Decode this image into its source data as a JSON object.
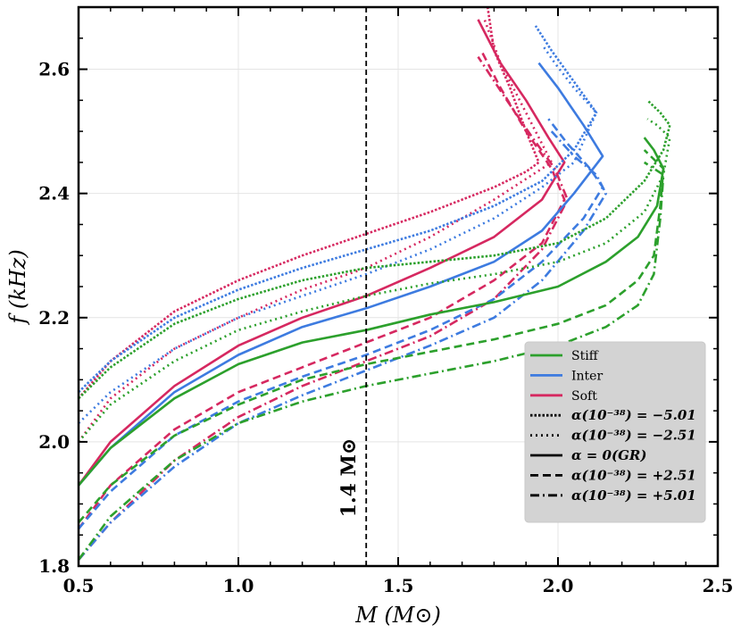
{
  "chart_data": {
    "type": "line",
    "xlabel": "M (M⊙)",
    "ylabel": "f (kHz)",
    "xlim": [
      0.5,
      2.5
    ],
    "ylim": [
      1.8,
      2.7
    ],
    "xticks": [
      0.5,
      1.0,
      1.5,
      2.0,
      2.5
    ],
    "xtick_labels": [
      "0.5",
      "1.0",
      "1.5",
      "2.0",
      "2.5"
    ],
    "yticks": [
      1.8,
      2.0,
      2.2,
      2.4,
      2.6
    ],
    "ytick_labels": [
      "1.8",
      "2.0",
      "2.2",
      "2.4",
      "2.6"
    ],
    "grid": true,
    "legend_position": "lower-right",
    "annotation": {
      "text": "1.4 M⊙",
      "x": 1.4,
      "style": "dashed-vertical-line"
    },
    "eos_legend": [
      {
        "name": "Stiff",
        "color": "#2ca02c"
      },
      {
        "name": "Inter",
        "color": "#3d7be0"
      },
      {
        "name": "Soft",
        "color": "#d62860"
      }
    ],
    "alpha_legend": [
      {
        "label": "α(10⁻³⁸) = −5.01",
        "dash": "densely-dotted"
      },
      {
        "label": "α(10⁻³⁸) = −2.51",
        "dash": "dotted"
      },
      {
        "label": "α = 0(GR)",
        "dash": "solid"
      },
      {
        "label": "α(10⁻³⁸) = +2.51",
        "dash": "dashed"
      },
      {
        "label": "α(10⁻³⁸) = +5.01",
        "dash": "dashdot"
      }
    ],
    "series": [
      {
        "eos": "Soft",
        "alpha": -5.01,
        "color": "#d62860",
        "dash": "densely-dotted",
        "points": [
          [
            0.5,
            2.07
          ],
          [
            0.6,
            2.13
          ],
          [
            0.8,
            2.21
          ],
          [
            1.0,
            2.26
          ],
          [
            1.2,
            2.3
          ],
          [
            1.4,
            2.335
          ],
          [
            1.6,
            2.37
          ],
          [
            1.8,
            2.41
          ],
          [
            1.9,
            2.435
          ],
          [
            1.94,
            2.45
          ],
          [
            1.9,
            2.5
          ],
          [
            1.85,
            2.57
          ],
          [
            1.8,
            2.63
          ],
          [
            1.78,
            2.7
          ]
        ]
      },
      {
        "eos": "Soft",
        "alpha": -2.51,
        "color": "#d62860",
        "dash": "dotted",
        "points": [
          [
            0.5,
            2.0
          ],
          [
            0.6,
            2.07
          ],
          [
            0.8,
            2.15
          ],
          [
            1.0,
            2.2
          ],
          [
            1.2,
            2.245
          ],
          [
            1.4,
            2.28
          ],
          [
            1.6,
            2.33
          ],
          [
            1.8,
            2.39
          ],
          [
            1.95,
            2.44
          ],
          [
            1.98,
            2.45
          ],
          [
            1.93,
            2.5
          ],
          [
            1.87,
            2.56
          ],
          [
            1.82,
            2.61
          ],
          [
            1.77,
            2.68
          ]
        ]
      },
      {
        "eos": "Soft",
        "alpha": 0,
        "color": "#d62860",
        "dash": "solid",
        "points": [
          [
            0.5,
            1.93
          ],
          [
            0.6,
            2.0
          ],
          [
            0.8,
            2.09
          ],
          [
            1.0,
            2.155
          ],
          [
            1.2,
            2.2
          ],
          [
            1.4,
            2.235
          ],
          [
            1.6,
            2.28
          ],
          [
            1.8,
            2.33
          ],
          [
            1.95,
            2.39
          ],
          [
            2.02,
            2.45
          ],
          [
            1.97,
            2.49
          ],
          [
            1.9,
            2.55
          ],
          [
            1.82,
            2.61
          ],
          [
            1.75,
            2.68
          ]
        ]
      },
      {
        "eos": "Soft",
        "alpha": 2.51,
        "color": "#d62860",
        "dash": "dashed",
        "points": [
          [
            0.5,
            1.86
          ],
          [
            0.6,
            1.93
          ],
          [
            0.8,
            2.02
          ],
          [
            1.0,
            2.08
          ],
          [
            1.2,
            2.12
          ],
          [
            1.4,
            2.16
          ],
          [
            1.6,
            2.2
          ],
          [
            1.8,
            2.26
          ],
          [
            1.95,
            2.32
          ],
          [
            2.02,
            2.39
          ],
          [
            1.98,
            2.44
          ],
          [
            1.9,
            2.5
          ],
          [
            1.82,
            2.57
          ],
          [
            1.76,
            2.63
          ]
        ]
      },
      {
        "eos": "Soft",
        "alpha": 5.01,
        "color": "#d62860",
        "dash": "dashdot",
        "points": [
          [
            0.5,
            1.81
          ],
          [
            0.6,
            1.87
          ],
          [
            0.8,
            1.97
          ],
          [
            1.0,
            2.04
          ],
          [
            1.2,
            2.09
          ],
          [
            1.4,
            2.13
          ],
          [
            1.6,
            2.17
          ],
          [
            1.8,
            2.23
          ],
          [
            1.95,
            2.31
          ],
          [
            2.03,
            2.39
          ],
          [
            1.99,
            2.44
          ],
          [
            1.92,
            2.49
          ],
          [
            1.84,
            2.55
          ],
          [
            1.75,
            2.62
          ]
        ]
      },
      {
        "eos": "Inter",
        "alpha": -5.01,
        "color": "#3d7be0",
        "dash": "densely-dotted",
        "points": [
          [
            0.5,
            2.08
          ],
          [
            0.6,
            2.13
          ],
          [
            0.8,
            2.2
          ],
          [
            1.0,
            2.245
          ],
          [
            1.2,
            2.28
          ],
          [
            1.4,
            2.31
          ],
          [
            1.6,
            2.34
          ],
          [
            1.8,
            2.38
          ],
          [
            1.95,
            2.42
          ],
          [
            2.05,
            2.47
          ],
          [
            2.12,
            2.53
          ],
          [
            2.05,
            2.58
          ],
          [
            1.98,
            2.63
          ],
          [
            1.93,
            2.67
          ]
        ]
      },
      {
        "eos": "Inter",
        "alpha": -2.51,
        "color": "#3d7be0",
        "dash": "dotted",
        "points": [
          [
            0.5,
            2.03
          ],
          [
            0.6,
            2.08
          ],
          [
            0.8,
            2.15
          ],
          [
            1.0,
            2.2
          ],
          [
            1.2,
            2.235
          ],
          [
            1.4,
            2.27
          ],
          [
            1.6,
            2.31
          ],
          [
            1.8,
            2.36
          ],
          [
            1.95,
            2.41
          ],
          [
            2.05,
            2.45
          ],
          [
            2.12,
            2.53
          ],
          [
            2.05,
            2.57
          ],
          [
            1.99,
            2.61
          ],
          [
            1.95,
            2.64
          ]
        ]
      },
      {
        "eos": "Inter",
        "alpha": 0,
        "color": "#3d7be0",
        "dash": "solid",
        "points": [
          [
            0.5,
            1.93
          ],
          [
            0.6,
            1.99
          ],
          [
            0.8,
            2.08
          ],
          [
            1.0,
            2.14
          ],
          [
            1.2,
            2.185
          ],
          [
            1.4,
            2.215
          ],
          [
            1.6,
            2.25
          ],
          [
            1.8,
            2.29
          ],
          [
            1.95,
            2.34
          ],
          [
            2.05,
            2.4
          ],
          [
            2.14,
            2.46
          ],
          [
            2.08,
            2.51
          ],
          [
            2.0,
            2.57
          ],
          [
            1.94,
            2.61
          ]
        ]
      },
      {
        "eos": "Inter",
        "alpha": 2.51,
        "color": "#3d7be0",
        "dash": "dashed",
        "points": [
          [
            0.5,
            1.86
          ],
          [
            0.6,
            1.92
          ],
          [
            0.8,
            2.01
          ],
          [
            1.0,
            2.065
          ],
          [
            1.2,
            2.105
          ],
          [
            1.4,
            2.14
          ],
          [
            1.6,
            2.18
          ],
          [
            1.8,
            2.23
          ],
          [
            1.95,
            2.29
          ],
          [
            2.08,
            2.36
          ],
          [
            2.14,
            2.41
          ],
          [
            2.1,
            2.44
          ],
          [
            2.03,
            2.48
          ],
          [
            1.97,
            2.52
          ]
        ]
      },
      {
        "eos": "Inter",
        "alpha": 5.01,
        "color": "#3d7be0",
        "dash": "dashdot",
        "points": [
          [
            0.5,
            1.81
          ],
          [
            0.6,
            1.87
          ],
          [
            0.8,
            1.96
          ],
          [
            1.0,
            2.03
          ],
          [
            1.2,
            2.075
          ],
          [
            1.4,
            2.115
          ],
          [
            1.6,
            2.155
          ],
          [
            1.8,
            2.2
          ],
          [
            1.95,
            2.26
          ],
          [
            2.08,
            2.34
          ],
          [
            2.15,
            2.4
          ],
          [
            2.12,
            2.43
          ],
          [
            2.05,
            2.46
          ],
          [
            1.98,
            2.5
          ]
        ]
      },
      {
        "eos": "Stiff",
        "alpha": -5.01,
        "color": "#2ca02c",
        "dash": "densely-dotted",
        "points": [
          [
            0.5,
            2.07
          ],
          [
            0.6,
            2.12
          ],
          [
            0.8,
            2.19
          ],
          [
            1.0,
            2.23
          ],
          [
            1.2,
            2.26
          ],
          [
            1.4,
            2.28
          ],
          [
            1.6,
            2.29
          ],
          [
            1.8,
            2.3
          ],
          [
            2.0,
            2.32
          ],
          [
            2.15,
            2.36
          ],
          [
            2.27,
            2.42
          ],
          [
            2.33,
            2.47
          ],
          [
            2.35,
            2.51
          ],
          [
            2.32,
            2.53
          ],
          [
            2.28,
            2.55
          ]
        ]
      },
      {
        "eos": "Stiff",
        "alpha": -2.51,
        "color": "#2ca02c",
        "dash": "dotted",
        "points": [
          [
            0.5,
            2.0
          ],
          [
            0.6,
            2.06
          ],
          [
            0.8,
            2.13
          ],
          [
            1.0,
            2.18
          ],
          [
            1.2,
            2.21
          ],
          [
            1.4,
            2.235
          ],
          [
            1.6,
            2.255
          ],
          [
            1.8,
            2.27
          ],
          [
            2.0,
            2.29
          ],
          [
            2.15,
            2.32
          ],
          [
            2.27,
            2.37
          ],
          [
            2.33,
            2.43
          ],
          [
            2.35,
            2.49
          ],
          [
            2.31,
            2.51
          ],
          [
            2.28,
            2.52
          ]
        ]
      },
      {
        "eos": "Stiff",
        "alpha": 0,
        "color": "#2ca02c",
        "dash": "solid",
        "points": [
          [
            0.5,
            1.93
          ],
          [
            0.6,
            1.99
          ],
          [
            0.8,
            2.07
          ],
          [
            1.0,
            2.125
          ],
          [
            1.2,
            2.16
          ],
          [
            1.4,
            2.18
          ],
          [
            1.6,
            2.205
          ],
          [
            1.8,
            2.225
          ],
          [
            2.0,
            2.25
          ],
          [
            2.15,
            2.29
          ],
          [
            2.25,
            2.33
          ],
          [
            2.31,
            2.38
          ],
          [
            2.33,
            2.44
          ],
          [
            2.3,
            2.47
          ],
          [
            2.27,
            2.49
          ]
        ]
      },
      {
        "eos": "Stiff",
        "alpha": 2.51,
        "color": "#2ca02c",
        "dash": "dashed",
        "points": [
          [
            0.5,
            1.87
          ],
          [
            0.6,
            1.93
          ],
          [
            0.8,
            2.01
          ],
          [
            1.0,
            2.06
          ],
          [
            1.2,
            2.1
          ],
          [
            1.4,
            2.125
          ],
          [
            1.6,
            2.145
          ],
          [
            1.8,
            2.165
          ],
          [
            2.0,
            2.19
          ],
          [
            2.15,
            2.22
          ],
          [
            2.25,
            2.26
          ],
          [
            2.3,
            2.3
          ],
          [
            2.32,
            2.38
          ],
          [
            2.33,
            2.44
          ],
          [
            2.29,
            2.46
          ],
          [
            2.27,
            2.47
          ]
        ]
      },
      {
        "eos": "Stiff",
        "alpha": 5.01,
        "color": "#2ca02c",
        "dash": "dashdot",
        "points": [
          [
            0.5,
            1.81
          ],
          [
            0.6,
            1.88
          ],
          [
            0.8,
            1.97
          ],
          [
            1.0,
            2.03
          ],
          [
            1.2,
            2.065
          ],
          [
            1.4,
            2.09
          ],
          [
            1.6,
            2.11
          ],
          [
            1.8,
            2.13
          ],
          [
            2.0,
            2.155
          ],
          [
            2.15,
            2.185
          ],
          [
            2.25,
            2.22
          ],
          [
            2.3,
            2.27
          ],
          [
            2.32,
            2.36
          ],
          [
            2.33,
            2.43
          ],
          [
            2.3,
            2.44
          ],
          [
            2.27,
            2.45
          ]
        ]
      }
    ]
  }
}
